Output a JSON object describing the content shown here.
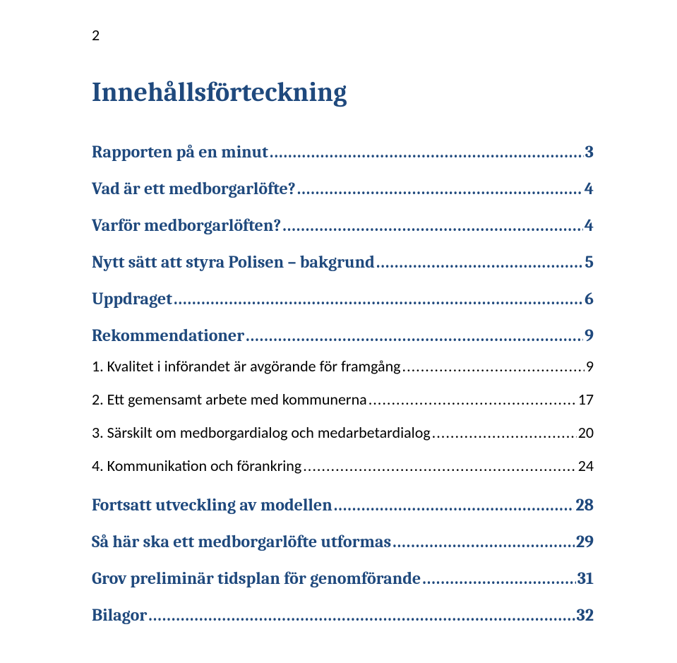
{
  "page_number": "2",
  "title": {
    "text": "Innehållsförteckning",
    "color": "#1f497d",
    "font_family": "Cambria",
    "font_size_pt": 28,
    "font_weight": 700
  },
  "colors": {
    "background": "#ffffff",
    "heading_blue": "#1f497d",
    "body_text": "#000000"
  },
  "typography": {
    "lvl1_font_family": "Cambria",
    "lvl1_font_size_pt": 18,
    "lvl1_font_weight": 700,
    "lvl2_font_family": "Calibri",
    "lvl2_font_size_pt": 16,
    "lvl2_font_weight": 400
  },
  "toc": [
    {
      "level": 1,
      "label": "Rapporten på en minut",
      "page": "3"
    },
    {
      "level": 1,
      "label": "Vad är ett medborgarlöfte?",
      "page": "4"
    },
    {
      "level": 1,
      "label": "Varför medborgarlöften?",
      "page": "4"
    },
    {
      "level": 1,
      "label": "Nytt sätt att styra Polisen – bakgrund",
      "page": "5"
    },
    {
      "level": 1,
      "label": "Uppdraget",
      "page": "6"
    },
    {
      "level": 1,
      "label": "Rekommendationer",
      "page": "9"
    },
    {
      "level": 2,
      "label": "1. Kvalitet i införandet är avgörande för framgång",
      "page": "9"
    },
    {
      "level": 2,
      "label": "2. Ett gemensamt arbete med kommunerna",
      "page": "17"
    },
    {
      "level": 2,
      "label": "3. Särskilt om medborgardialog och medarbetardialog",
      "page": "20"
    },
    {
      "level": 2,
      "label": "4. Kommunikation och förankring",
      "page": "24"
    },
    {
      "level": 1,
      "label": "Fortsatt utveckling av modellen",
      "page": "28"
    },
    {
      "level": 1,
      "label": "Så här ska ett medborgarlöfte utformas",
      "page": "29"
    },
    {
      "level": 1,
      "label": "Grov preliminär tidsplan för genomförande",
      "page": "31"
    },
    {
      "level": 1,
      "label": "Bilagor",
      "page": "32"
    }
  ]
}
